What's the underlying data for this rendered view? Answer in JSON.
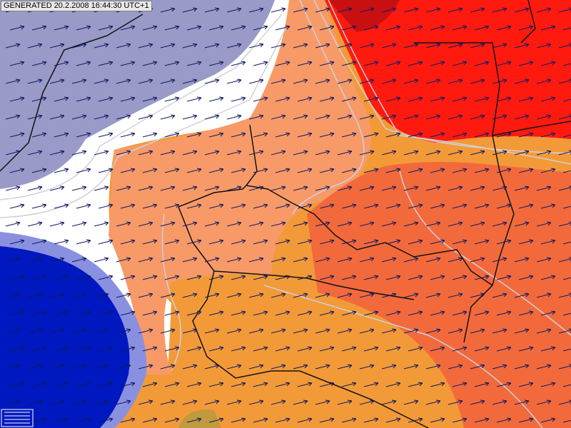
{
  "header": {
    "label": "GENERATED 20.2.2008 16:44:30 UTC+1"
  }
}
